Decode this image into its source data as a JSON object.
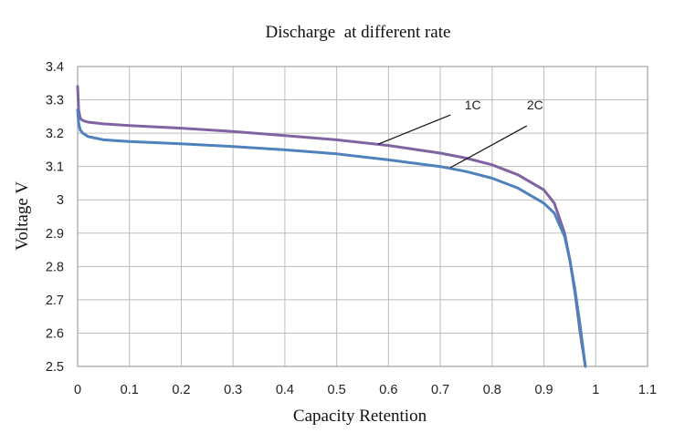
{
  "chart_data": {
    "type": "line",
    "title": "Discharge  at different rate",
    "xlabel": "Capacity Retention",
    "ylabel": "Voltage V",
    "xlim": [
      0,
      1.1
    ],
    "ylim": [
      2.5,
      3.4
    ],
    "grid": true,
    "x_ticks": [
      0,
      0.1,
      0.2,
      0.3,
      0.4,
      0.5,
      0.6,
      0.7,
      0.8,
      0.9,
      1,
      1.1
    ],
    "x_tick_labels": [
      "0",
      "0.1",
      "0.2",
      "0.3",
      "0.4",
      "0.5",
      "0.6",
      "0.7",
      "0.8",
      "0.9",
      "1",
      "1.1"
    ],
    "y_ticks": [
      2.5,
      2.6,
      2.7,
      2.8,
      2.9,
      3.0,
      3.1,
      3.2,
      3.3,
      3.4
    ],
    "y_tick_labels": [
      "2.5",
      "2.6",
      "2.7",
      "2.8",
      "2.9",
      "3",
      "3.1",
      "3.2",
      "3.3",
      "3.4"
    ],
    "series": [
      {
        "name": "1C",
        "color": "#8064a2",
        "x": [
          0,
          0.002,
          0.005,
          0.01,
          0.02,
          0.05,
          0.1,
          0.2,
          0.3,
          0.4,
          0.5,
          0.6,
          0.7,
          0.75,
          0.8,
          0.85,
          0.9,
          0.92,
          0.94,
          0.95,
          0.96,
          0.97,
          0.98
        ],
        "y": [
          3.34,
          3.27,
          3.245,
          3.238,
          3.233,
          3.228,
          3.223,
          3.215,
          3.205,
          3.193,
          3.18,
          3.163,
          3.14,
          3.125,
          3.105,
          3.075,
          3.03,
          2.99,
          2.9,
          2.82,
          2.72,
          2.6,
          2.5
        ]
      },
      {
        "name": "2C",
        "color": "#4f81bd",
        "x": [
          0,
          0.002,
          0.005,
          0.01,
          0.02,
          0.05,
          0.1,
          0.2,
          0.3,
          0.4,
          0.5,
          0.6,
          0.7,
          0.75,
          0.8,
          0.85,
          0.9,
          0.92,
          0.94,
          0.95,
          0.96,
          0.97,
          0.98
        ],
        "y": [
          3.27,
          3.23,
          3.21,
          3.2,
          3.19,
          3.18,
          3.175,
          3.168,
          3.16,
          3.15,
          3.138,
          3.12,
          3.1,
          3.085,
          3.065,
          3.035,
          2.99,
          2.96,
          2.89,
          2.82,
          2.73,
          2.62,
          2.5
        ]
      }
    ],
    "annotations": [
      {
        "text": "1C",
        "series": "1C",
        "text_at": [
          0.747,
          3.271
        ],
        "line_from": [
          0.72,
          3.255
        ],
        "line_to": [
          0.58,
          3.167
        ]
      },
      {
        "text": "2C",
        "series": "2C",
        "text_at": [
          0.867,
          3.271
        ],
        "line_from": [
          0.867,
          3.222
        ],
        "line_to": [
          0.72,
          3.097
        ]
      }
    ]
  }
}
